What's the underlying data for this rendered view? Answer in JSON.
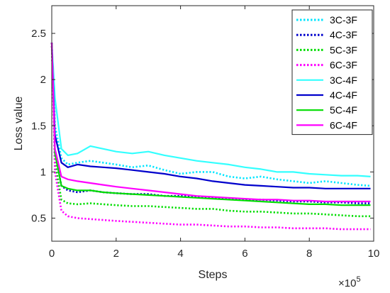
{
  "chart_data": {
    "type": "line",
    "title": "",
    "xlabel": "Steps",
    "ylabel": "Loss value",
    "x_multiplier_base": "×10",
    "x_multiplier_exp": "5",
    "xlim": [
      0,
      10
    ],
    "ylim": [
      0.25,
      2.8
    ],
    "xticks": [
      0,
      2,
      4,
      6,
      8,
      10
    ],
    "xtick_labels": [
      "0",
      "2",
      "4",
      "6",
      "8",
      "10"
    ],
    "yticks": [
      0.5,
      1,
      1.5,
      2,
      2.5
    ],
    "ytick_labels": [
      "0.5",
      "1",
      "1.5",
      "2",
      "2.5"
    ],
    "grid": false,
    "legend_position": "top-right",
    "x": [
      0,
      0.1,
      0.3,
      0.5,
      0.8,
      1.2,
      1.6,
      2.0,
      2.5,
      3.0,
      3.5,
      4.0,
      4.5,
      5.0,
      5.5,
      6.0,
      6.5,
      7.0,
      7.5,
      8.0,
      8.5,
      9.0,
      9.5,
      9.9
    ],
    "series": [
      {
        "name": "3C-3F",
        "color": "#00e5ff",
        "dash": "dotted",
        "values": [
          2.4,
          1.5,
          1.15,
          1.08,
          1.1,
          1.12,
          1.1,
          1.08,
          1.05,
          1.07,
          1.02,
          0.98,
          1.0,
          1.0,
          0.95,
          0.93,
          0.95,
          0.92,
          0.9,
          0.88,
          0.9,
          0.88,
          0.86,
          0.85
        ]
      },
      {
        "name": "4C-3F",
        "color": "#0000cc",
        "dash": "dotted",
        "values": [
          2.4,
          1.2,
          0.85,
          0.8,
          0.78,
          0.8,
          0.78,
          0.77,
          0.76,
          0.76,
          0.74,
          0.74,
          0.73,
          0.72,
          0.71,
          0.7,
          0.7,
          0.69,
          0.68,
          0.68,
          0.67,
          0.67,
          0.66,
          0.66
        ]
      },
      {
        "name": "5C-3F",
        "color": "#00dd00",
        "dash": "dotted",
        "values": [
          2.4,
          1.1,
          0.7,
          0.66,
          0.65,
          0.66,
          0.65,
          0.64,
          0.63,
          0.63,
          0.62,
          0.61,
          0.6,
          0.6,
          0.58,
          0.57,
          0.57,
          0.56,
          0.55,
          0.55,
          0.54,
          0.53,
          0.52,
          0.52
        ]
      },
      {
        "name": "6C-3F",
        "color": "#ff00ff",
        "dash": "dotted",
        "values": [
          2.4,
          1.0,
          0.58,
          0.52,
          0.5,
          0.49,
          0.48,
          0.47,
          0.46,
          0.45,
          0.44,
          0.43,
          0.43,
          0.42,
          0.41,
          0.41,
          0.4,
          0.4,
          0.39,
          0.39,
          0.39,
          0.38,
          0.38,
          0.38
        ]
      },
      {
        "name": "3C-4F",
        "color": "#33ffff",
        "dash": "solid",
        "values": [
          2.4,
          1.8,
          1.25,
          1.18,
          1.2,
          1.28,
          1.25,
          1.22,
          1.2,
          1.22,
          1.18,
          1.15,
          1.12,
          1.1,
          1.08,
          1.05,
          1.03,
          1.0,
          1.0,
          0.98,
          0.97,
          0.96,
          0.96,
          0.95
        ]
      },
      {
        "name": "4C-4F",
        "color": "#0000cc",
        "dash": "solid",
        "values": [
          2.4,
          1.4,
          1.1,
          1.05,
          1.08,
          1.06,
          1.05,
          1.04,
          1.02,
          1.0,
          0.98,
          0.95,
          0.93,
          0.9,
          0.88,
          0.86,
          0.85,
          0.84,
          0.83,
          0.83,
          0.82,
          0.82,
          0.82,
          0.82
        ]
      },
      {
        "name": "5C-4F",
        "color": "#00dd00",
        "dash": "solid",
        "values": [
          2.4,
          1.2,
          0.85,
          0.82,
          0.8,
          0.8,
          0.78,
          0.77,
          0.76,
          0.75,
          0.74,
          0.73,
          0.72,
          0.71,
          0.7,
          0.69,
          0.68,
          0.67,
          0.66,
          0.65,
          0.65,
          0.64,
          0.64,
          0.64
        ]
      },
      {
        "name": "6C-4F",
        "color": "#ff00ff",
        "dash": "solid",
        "values": [
          2.4,
          1.25,
          0.95,
          0.92,
          0.9,
          0.88,
          0.86,
          0.84,
          0.82,
          0.8,
          0.78,
          0.76,
          0.74,
          0.73,
          0.72,
          0.71,
          0.7,
          0.7,
          0.69,
          0.69,
          0.68,
          0.68,
          0.68,
          0.68
        ]
      }
    ]
  }
}
